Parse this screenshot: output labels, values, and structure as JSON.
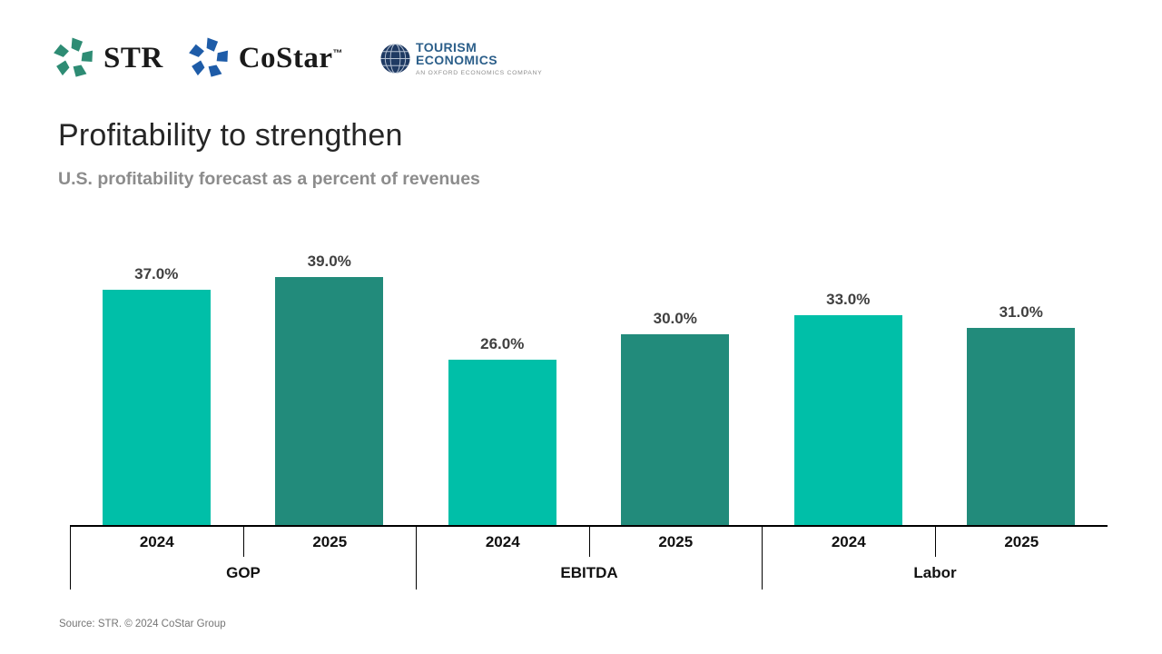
{
  "logos": {
    "str": {
      "label": "STR"
    },
    "costar": {
      "label": "CoStar",
      "tm": "™"
    },
    "tourism_economics": {
      "line1": "TOURISM",
      "line2": "ECONOMICS",
      "tagline": "AN OXFORD ECONOMICS COMPANY"
    }
  },
  "title": "Profitability to strengthen",
  "subtitle": "U.S. profitability forecast as a percent of revenues",
  "source": "Source: STR. © 2024 CoStar Group",
  "colors": {
    "series_2024": "#00BFA8",
    "series_2025": "#228B7B",
    "str_green": "#2E8C74",
    "costar_blue": "#1E5CA8",
    "tourism_blue": "#2C5F8A",
    "globe_navy": "#1F3A63",
    "title_text": "#262626",
    "subtitle_text": "#8C8C8C",
    "label_text": "#404040",
    "source_text": "#757575"
  },
  "chart_data": {
    "type": "bar",
    "title": "U.S. profitability forecast as a percent of revenues",
    "categories": [
      "GOP",
      "EBITDA",
      "Labor"
    ],
    "year_labels": [
      "2024",
      "2025"
    ],
    "series": [
      {
        "name": "2024",
        "color": "#00BFA8",
        "values": [
          37.0,
          26.0,
          33.0
        ],
        "labels": [
          "37.0%",
          "26.0%",
          "33.0%"
        ]
      },
      {
        "name": "2025",
        "color": "#228B7B",
        "values": [
          39.0,
          30.0,
          31.0
        ],
        "labels": [
          "39.0%",
          "30.0%",
          "31.0%"
        ]
      }
    ],
    "ylim": [
      0,
      49.3
    ],
    "grid": false,
    "legend": "none",
    "data_labels": true
  }
}
